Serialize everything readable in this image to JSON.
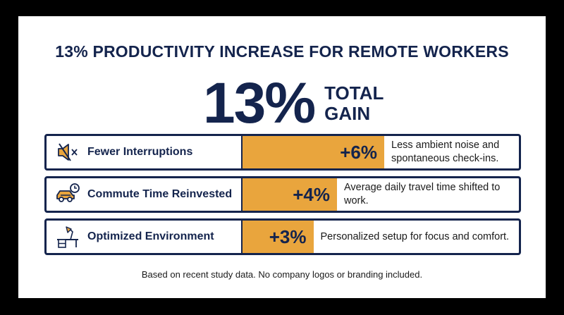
{
  "chart_data": {
    "type": "bar",
    "title": "13% PRODUCTIVITY INCREASE FOR REMOTE WORKERS",
    "total": {
      "value": "13%",
      "label": "TOTAL GAIN"
    },
    "categories": [
      "Fewer Interruptions",
      "Commute Time Reinvested",
      "Optimized Environment"
    ],
    "values": [
      6,
      4,
      3
    ],
    "value_labels": [
      "+6%",
      "+4%",
      "+3%"
    ],
    "descriptions": [
      "Less ambient noise and spontaneous check-ins.",
      "Average daily travel time shifted to work.",
      "Personalized setup for focus and comfort."
    ],
    "icons": [
      "muted-speaker-icon",
      "car-clock-icon",
      "desk-lamp-icon"
    ],
    "footer": "Based on recent study data. No company logos or branding included.",
    "colors": {
      "bar": "#e9a53d",
      "text": "#14244d",
      "border": "#14244d"
    }
  }
}
